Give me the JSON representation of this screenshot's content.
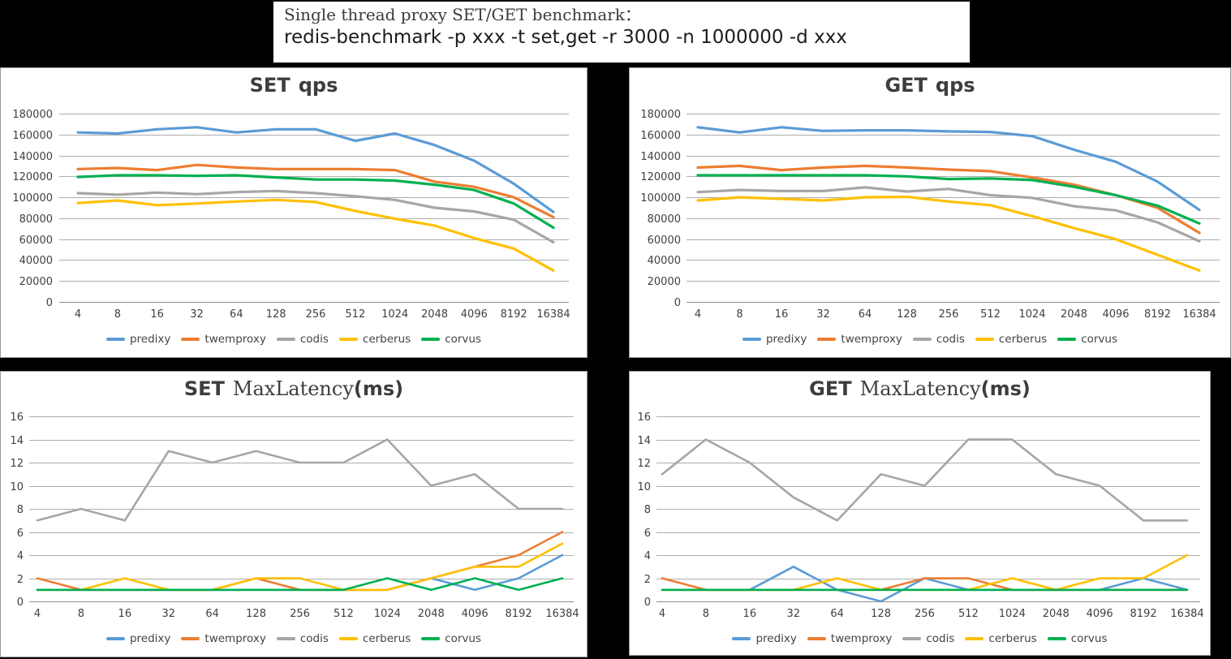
{
  "header": {
    "line1": "Single thread proxy SET/GET benchmark：",
    "line2": "redis-benchmark -p xxx -t set,get -r 3000 -n 1000000 -d xxx"
  },
  "legend": {
    "position": "bottom",
    "series": [
      {
        "name": "predixy",
        "color": "#5B9BD5"
      },
      {
        "name": "twemproxy",
        "color": "#ED7D31"
      },
      {
        "name": "codis",
        "color": "#A6A6A6"
      },
      {
        "name": "cerberus",
        "color": "#FFC000"
      },
      {
        "name": "corvus",
        "color": "#00B050"
      }
    ]
  },
  "chart_data": [
    {
      "id": "set_qps",
      "type": "line",
      "title": {
        "p1": "SET",
        "p2": "",
        "p3": "qps"
      },
      "xlabel": "",
      "ylabel": "",
      "grid": true,
      "ylim": [
        0,
        180000
      ],
      "ytick": 20000,
      "categories": [
        "4",
        "8",
        "16",
        "32",
        "64",
        "128",
        "256",
        "512",
        "1024",
        "2048",
        "4096",
        "8192",
        "16384"
      ],
      "series": [
        {
          "name": "predixy",
          "values": [
            162000,
            161000,
            165000,
            167000,
            162000,
            165000,
            165000,
            154000,
            161000,
            150000,
            135000,
            113000,
            86000
          ]
        },
        {
          "name": "twemproxy",
          "values": [
            127000,
            128000,
            126000,
            131000,
            128500,
            127000,
            127000,
            127000,
            126000,
            115000,
            110000,
            100000,
            81000
          ]
        },
        {
          "name": "codis",
          "values": [
            104000,
            102500,
            104500,
            103000,
            105000,
            106000,
            104000,
            101000,
            97500,
            90000,
            86500,
            78500,
            57000
          ]
        },
        {
          "name": "cerberus",
          "values": [
            94500,
            97000,
            92500,
            94000,
            96000,
            97500,
            95500,
            87000,
            79500,
            73000,
            61000,
            51000,
            30000
          ]
        },
        {
          "name": "corvus",
          "values": [
            119500,
            121000,
            121000,
            120500,
            121000,
            119000,
            117000,
            117000,
            116000,
            112000,
            107000,
            94000,
            71000
          ]
        }
      ]
    },
    {
      "id": "get_qps",
      "type": "line",
      "title": {
        "p1": "GET",
        "p2": "",
        "p3": "qps"
      },
      "xlabel": "",
      "ylabel": "",
      "grid": true,
      "ylim": [
        0,
        180000
      ],
      "ytick": 20000,
      "categories": [
        "4",
        "8",
        "16",
        "32",
        "64",
        "128",
        "256",
        "512",
        "1024",
        "2048",
        "4096",
        "8192",
        "16384"
      ],
      "series": [
        {
          "name": "predixy",
          "values": [
            167000,
            162000,
            167000,
            163500,
            164000,
            164000,
            163000,
            162500,
            158500,
            145500,
            134000,
            115000,
            88000
          ]
        },
        {
          "name": "twemproxy",
          "values": [
            128500,
            130000,
            126000,
            128500,
            130000,
            128500,
            126500,
            125000,
            119000,
            112000,
            102000,
            90000,
            66000
          ]
        },
        {
          "name": "codis",
          "values": [
            105000,
            107000,
            106000,
            106000,
            109500,
            105500,
            108000,
            102000,
            99500,
            91500,
            87500,
            76000,
            58000
          ]
        },
        {
          "name": "cerberus",
          "values": [
            97000,
            100000,
            98500,
            97000,
            100000,
            100500,
            96000,
            92500,
            82000,
            70500,
            60000,
            45000,
            30000
          ]
        },
        {
          "name": "corvus",
          "values": [
            121000,
            121000,
            121000,
            121000,
            121000,
            120000,
            117500,
            118000,
            116500,
            110000,
            102000,
            92000,
            75000
          ]
        }
      ]
    },
    {
      "id": "set_lat",
      "type": "line",
      "title": {
        "p1": "SET",
        "p2": "MaxLatency",
        "p3": "(ms)"
      },
      "xlabel": "",
      "ylabel": "",
      "grid": true,
      "ylim": [
        0,
        16
      ],
      "ytick": 2,
      "categories": [
        "4",
        "8",
        "16",
        "32",
        "64",
        "128",
        "256",
        "512",
        "1024",
        "2048",
        "4096",
        "8192",
        "16384"
      ],
      "series": [
        {
          "name": "predixy",
          "values": [
            1,
            1,
            1,
            1,
            1,
            1,
            1,
            1,
            1,
            2,
            1,
            2,
            4
          ]
        },
        {
          "name": "twemproxy",
          "values": [
            2,
            1,
            1,
            1,
            1,
            2,
            1,
            1,
            1,
            2,
            3,
            4,
            6
          ]
        },
        {
          "name": "codis",
          "values": [
            7,
            8,
            7,
            13,
            12,
            13,
            12,
            12,
            14,
            10,
            11,
            8,
            8
          ]
        },
        {
          "name": "cerberus",
          "values": [
            1,
            1,
            2,
            1,
            1,
            2,
            2,
            1,
            1,
            2,
            3,
            3,
            5
          ]
        },
        {
          "name": "corvus",
          "values": [
            1,
            1,
            1,
            1,
            1,
            1,
            1,
            1,
            2,
            1,
            2,
            1,
            2
          ]
        }
      ]
    },
    {
      "id": "get_lat",
      "type": "line",
      "title": {
        "p1": "GET",
        "p2": "MaxLatency",
        "p3": "(ms)"
      },
      "xlabel": "",
      "ylabel": "",
      "grid": true,
      "ylim": [
        0,
        16
      ],
      "ytick": 2,
      "categories": [
        "4",
        "8",
        "16",
        "32",
        "64",
        "128",
        "256",
        "512",
        "1024",
        "2048",
        "4096",
        "8192",
        "16384"
      ],
      "series": [
        {
          "name": "predixy",
          "values": [
            1,
            1,
            1,
            3,
            1,
            0,
            2,
            1,
            1,
            1,
            1,
            2,
            1
          ]
        },
        {
          "name": "twemproxy",
          "values": [
            2,
            1,
            1,
            1,
            1,
            1,
            2,
            2,
            1,
            1,
            1,
            1,
            1
          ]
        },
        {
          "name": "codis",
          "values": [
            11,
            14,
            12,
            9,
            7,
            11,
            10,
            14,
            14,
            11,
            10,
            7,
            7
          ]
        },
        {
          "name": "cerberus",
          "values": [
            1,
            1,
            1,
            1,
            2,
            1,
            1,
            1,
            2,
            1,
            2,
            2,
            4
          ]
        },
        {
          "name": "corvus",
          "values": [
            1,
            1,
            1,
            1,
            1,
            1,
            1,
            1,
            1,
            1,
            1,
            1,
            1
          ]
        }
      ]
    }
  ]
}
